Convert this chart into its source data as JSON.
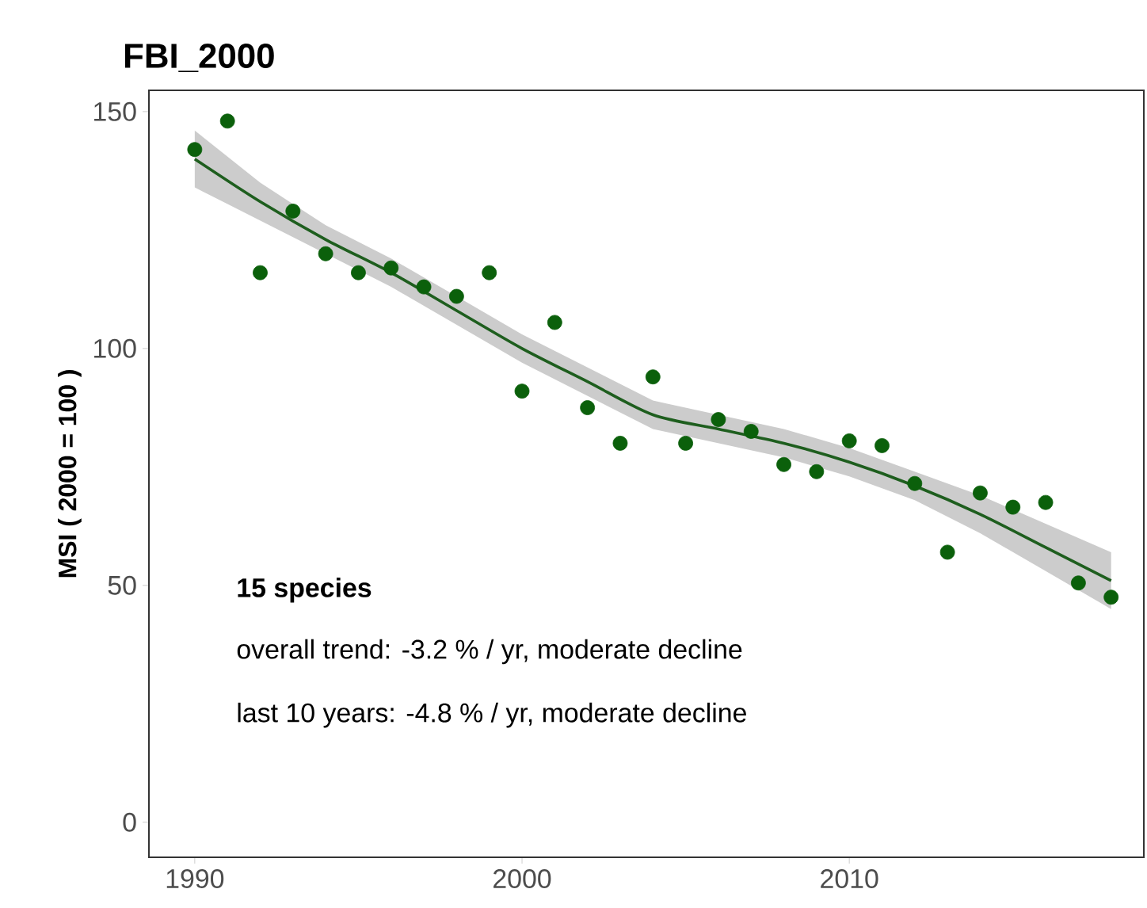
{
  "chart_data": {
    "type": "scatter",
    "title": "FBI_2000",
    "ylabel": "MSI ( 2000 = 100 )",
    "xlim": [
      1988.6,
      2019
    ],
    "ylim": [
      -7.4,
      154.5
    ],
    "xticks": [
      1990,
      2000,
      2010
    ],
    "yticks": [
      0,
      50,
      100,
      150
    ],
    "grid": false,
    "annotations": [
      "15 species",
      "overall trend: -3.2 % / yr, moderate decline",
      "last 10 years: -4.8 % / yr, moderate decline"
    ],
    "series": [
      {
        "color": "#0b600b",
        "marker": "circle",
        "x": [
          1990,
          1991,
          1992,
          1993,
          1994,
          1995,
          1996,
          1997,
          1998,
          1999,
          2000,
          2001,
          2002,
          2003,
          2004,
          2005,
          2006,
          2007,
          2008,
          2009,
          2010,
          2011,
          2012,
          2013,
          2014,
          2015,
          2016,
          2017,
          2018
        ],
        "values": [
          142,
          148,
          116,
          129,
          120,
          116,
          117,
          113,
          111,
          116,
          91,
          105.5,
          87.5,
          80,
          94,
          80,
          85,
          82.5,
          75.5,
          74,
          80.5,
          79.5,
          71.5,
          57,
          69.5,
          66.5,
          67.5,
          50.5,
          47.5
        ]
      },
      {
        "type": "line",
        "color": "#1e5e1e",
        "line_style": "solid",
        "marker": "none",
        "x": [
          1990,
          1992,
          1994,
          1996,
          1998,
          2000,
          2002,
          2004,
          2006,
          2008,
          2010,
          2012,
          2014,
          2016,
          2018
        ],
        "values": [
          140,
          131,
          123,
          116,
          108,
          100,
          93,
          86,
          83,
          80,
          76,
          71,
          65,
          58,
          51
        ],
        "lower": [
          134,
          127,
          120,
          113,
          105,
          97,
          90,
          83,
          80,
          77,
          73,
          68,
          61,
          53,
          45
        ],
        "upper": [
          146,
          135,
          126,
          119,
          111,
          103,
          96,
          89,
          86,
          83,
          79,
          74,
          69,
          63,
          57
        ]
      }
    ]
  }
}
